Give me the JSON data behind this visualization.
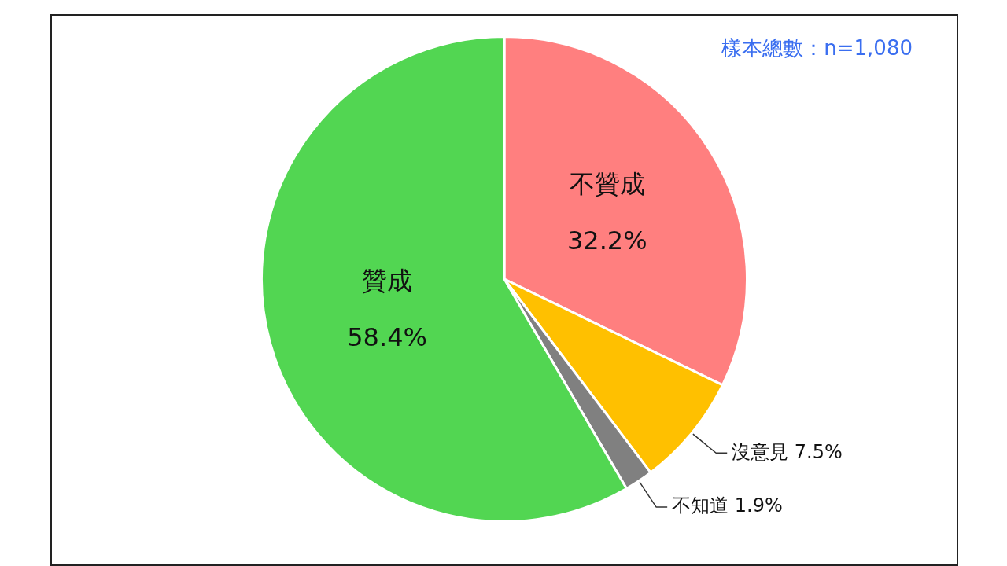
{
  "chart_data": {
    "type": "pie",
    "categories": [
      "不贊成",
      "沒意見",
      "不知道",
      "贊成"
    ],
    "values": [
      32.2,
      7.5,
      1.9,
      58.4
    ],
    "colors": [
      "#ff7f7f",
      "#ffc000",
      "#808080",
      "#52d652"
    ],
    "value_labels": [
      "32.2%",
      "7.5%",
      "1.9%",
      "58.4%"
    ],
    "annotations": [
      "樣本總數：n=1,080"
    ]
  }
}
